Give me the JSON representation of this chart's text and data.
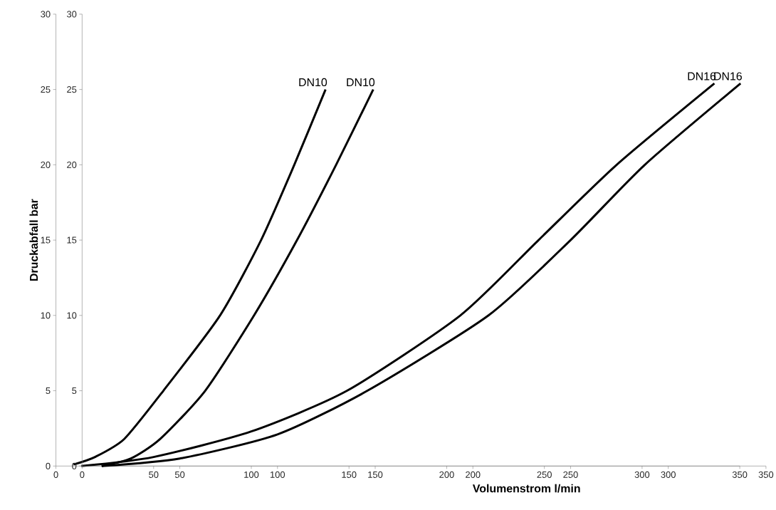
{
  "chart_data": [
    {
      "type": "line",
      "ylabel": "Druckabfall bar",
      "xlim": [
        0,
        350
      ],
      "ylim": [
        0,
        30
      ],
      "xticks": [
        0,
        50,
        100,
        150,
        200,
        250,
        300,
        350
      ],
      "yticks": [
        0,
        5,
        10,
        15,
        20,
        25,
        30
      ],
      "series": [
        {
          "name": "DN10",
          "color": "#000000",
          "x": [
            9,
            20,
            35,
            55,
            84,
            105,
            122,
            138
          ],
          "values": [
            0.1,
            0.6,
            1.8,
            5,
            10,
            15,
            20,
            25
          ]
        },
        {
          "name": "DN16",
          "color": "#000000",
          "x": [
            13,
            50,
            100,
            149,
            207,
            247,
            287,
            337
          ],
          "values": [
            0,
            0.6,
            2.3,
            5,
            10,
            15,
            20,
            25.4
          ]
        }
      ]
    },
    {
      "type": "line",
      "xlabel": "Volumenstrom l/min",
      "xlim": [
        0,
        350
      ],
      "ylim": [
        0,
        30
      ],
      "xticks": [
        0,
        50,
        100,
        150,
        200,
        250,
        300,
        350
      ],
      "yticks": [
        0,
        5,
        10,
        15,
        20,
        25,
        30
      ],
      "series": [
        {
          "name": "DN10",
          "color": "#000000",
          "x": [
            10,
            25,
            40,
            63,
            88,
            110,
            130,
            149
          ],
          "values": [
            0,
            0.5,
            1.8,
            5,
            10,
            15,
            20,
            25
          ]
        },
        {
          "name": "DN16",
          "color": "#000000",
          "x": [
            10,
            50,
            100,
            146,
            208,
            250,
            288,
            337
          ],
          "values": [
            0,
            0.5,
            2.1,
            5,
            10,
            15,
            20,
            25.4
          ]
        }
      ]
    }
  ]
}
